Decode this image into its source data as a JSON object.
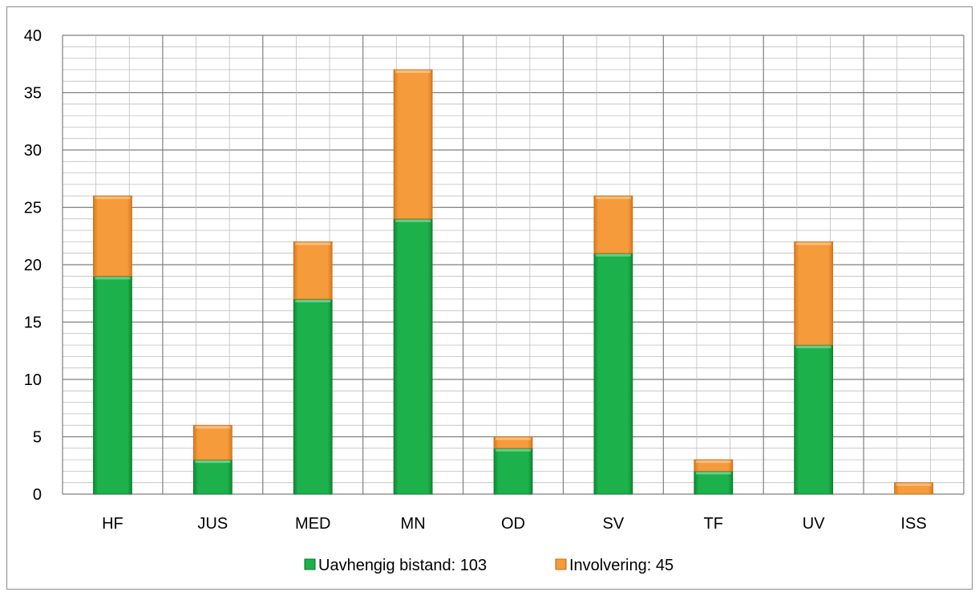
{
  "chart_data": {
    "type": "bar",
    "stacked": true,
    "categories": [
      "HF",
      "JUS",
      "MED",
      "MN",
      "OD",
      "SV",
      "TF",
      "UV",
      "ISS"
    ],
    "series": [
      {
        "name": "Uavhengig bistand: 103",
        "values": [
          19,
          3,
          17,
          24,
          4,
          21,
          2,
          13,
          0
        ],
        "color": "#1db14b"
      },
      {
        "name": "Involvering: 45",
        "values": [
          7,
          3,
          5,
          13,
          1,
          5,
          1,
          9,
          1
        ],
        "color": "#f59b3c"
      }
    ],
    "ylim": [
      0,
      40
    ],
    "yticks": [
      0,
      5,
      10,
      15,
      20,
      25,
      30,
      35,
      40
    ],
    "minor_grid_step": 1,
    "grid": true,
    "legend_position": "bottom"
  }
}
